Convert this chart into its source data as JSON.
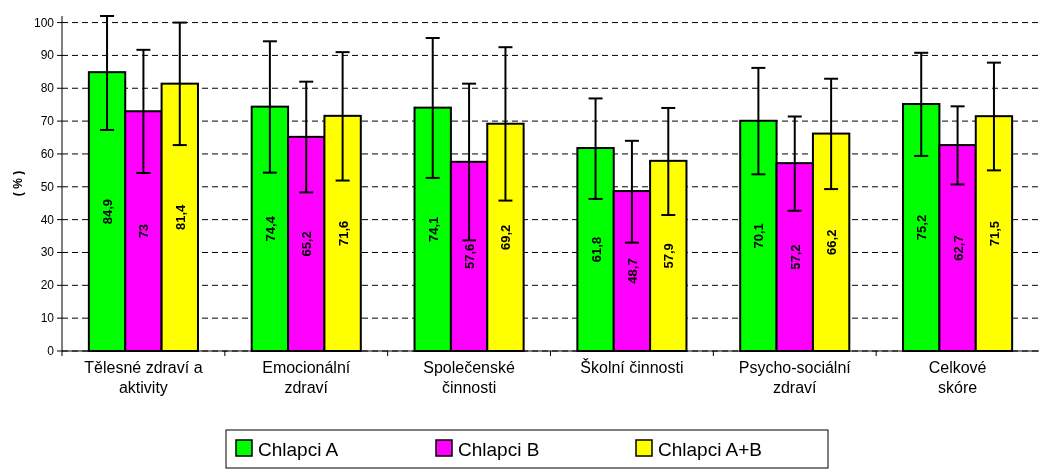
{
  "chart_data": {
    "type": "bar",
    "ylabel": "( % )",
    "categories": [
      "Tělesné zdraví a\naktivity",
      "Emocionální\nzdraví",
      "Společenské\nčinnosti",
      "Školní činnosti",
      "Psycho-sociální\nzdraví",
      "Celkové\nskóre"
    ],
    "series": [
      {
        "name": "Chlapci A",
        "color": "#00ff00",
        "values": [
          84.9,
          74.4,
          74.1,
          61.8,
          70.1,
          75.2
        ],
        "value_labels": [
          "84,9",
          "74,4",
          "74,1",
          "61,8",
          "70,1",
          "75,2"
        ],
        "errors": [
          [
            67.3,
            102
          ],
          [
            54.3,
            94.3
          ],
          [
            52.7,
            95.3
          ],
          [
            46.3,
            76.9
          ],
          [
            53.8,
            86.2
          ],
          [
            59.4,
            90.8
          ]
        ]
      },
      {
        "name": "Chlapci B",
        "color": "#ff00ff",
        "values": [
          73,
          65.2,
          57.6,
          48.7,
          57.2,
          62.7
        ],
        "value_labels": [
          "73",
          "65,2",
          "57,6",
          "48,7",
          "57,2",
          "62,7"
        ],
        "errors": [
          [
            54.2,
            91.7
          ],
          [
            48.3,
            82.0
          ],
          [
            33.7,
            81.4
          ],
          [
            33.0,
            64.0
          ],
          [
            42.7,
            71.4
          ],
          [
            50.7,
            74.5
          ]
        ]
      },
      {
        "name": "Chlapci A+B",
        "color": "#ffff00",
        "values": [
          81.4,
          71.6,
          69.2,
          57.9,
          66.2,
          71.5
        ],
        "value_labels": [
          "81,4",
          "71,6",
          "69,2",
          "57,9",
          "66,2",
          "71,5"
        ],
        "errors": [
          [
            62.7,
            100
          ],
          [
            51.9,
            91.0
          ],
          [
            45.8,
            92.5
          ],
          [
            41.4,
            74.0
          ],
          [
            49.3,
            82.9
          ],
          [
            55.0,
            87.8
          ]
        ]
      }
    ],
    "ylim": [
      0,
      102
    ],
    "yticks": [
      0,
      10,
      20,
      30,
      40,
      50,
      60,
      70,
      80,
      90,
      100
    ],
    "grid": "y",
    "legend": "bottom"
  }
}
